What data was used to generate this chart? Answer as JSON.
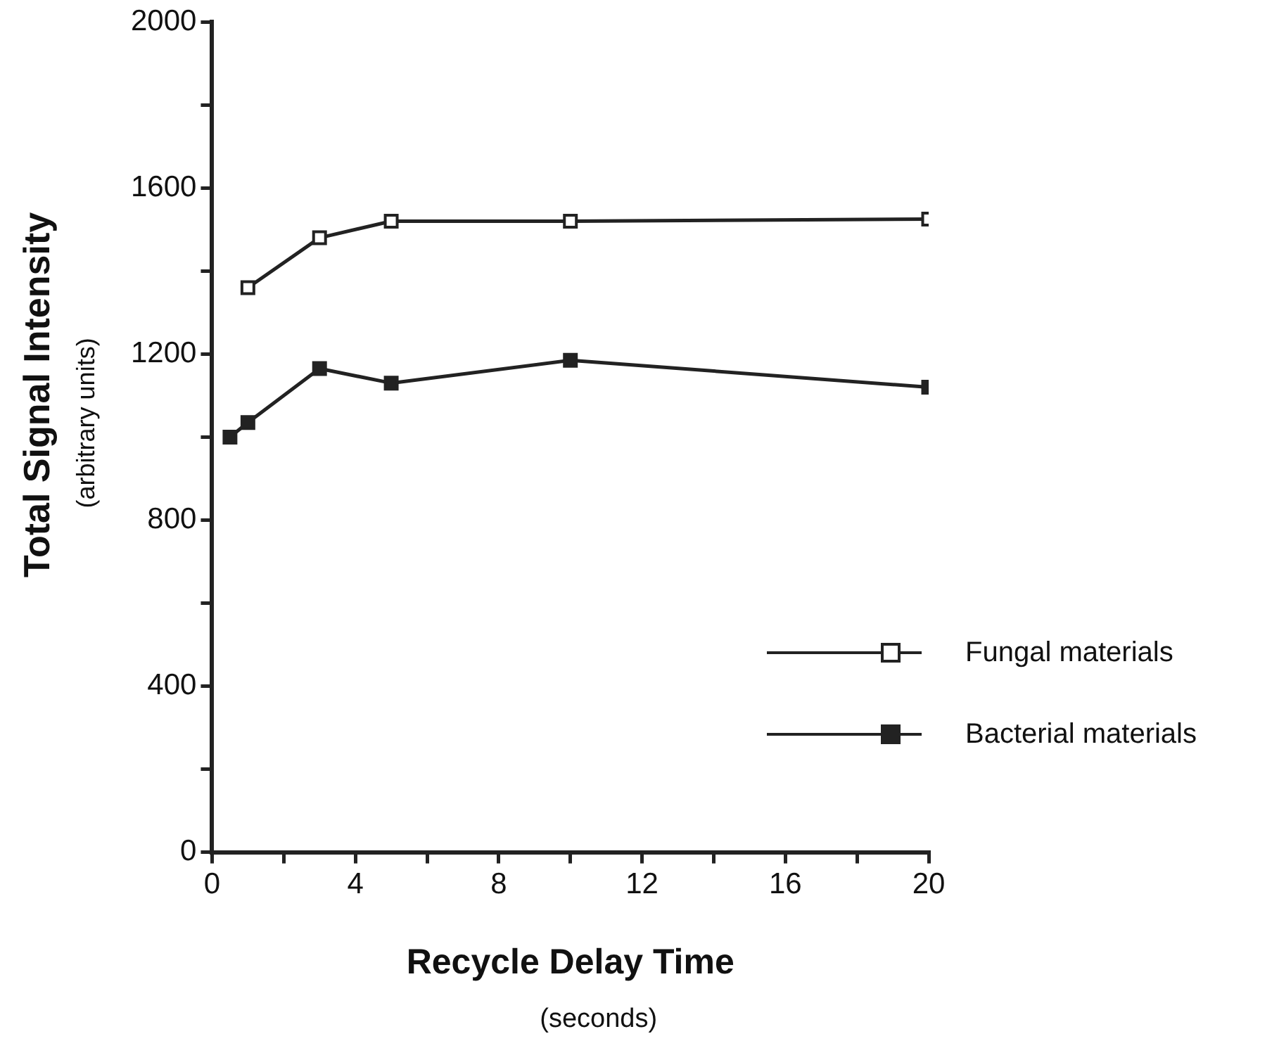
{
  "chart_data": {
    "type": "line",
    "xlabel": "Recycle Delay Time\n(seconds)",
    "ylabel": "Total Signal Intensity\n(arbitrary units)",
    "xlim": [
      0,
      20
    ],
    "xticks": [
      0,
      {
        "value": 2,
        "label": null
      },
      4,
      {
        "value": 6,
        "label": null
      },
      8,
      {
        "value": 10,
        "label": null
      },
      12,
      {
        "value": 14,
        "label": null
      },
      16,
      {
        "value": 18,
        "label": null
      },
      20
    ],
    "ylim": [
      0,
      2000
    ],
    "yticks": [
      0,
      {
        "value": 200,
        "label": null
      },
      400,
      {
        "value": 600,
        "label": null
      },
      800,
      {
        "value": 1000,
        "label": null
      },
      1200,
      {
        "value": 1400,
        "label": null
      },
      1600,
      {
        "value": 1800,
        "label": null
      },
      2000
    ],
    "series": [
      {
        "name": "Fungal materials",
        "color": "#222222",
        "x": [
          1,
          3,
          5,
          10,
          20
        ],
        "values": [
          1360,
          1480,
          1520,
          1520,
          1525
        ]
      },
      {
        "name": "Bacterial materials",
        "color": "#222222",
        "x": [
          0.5,
          1,
          3,
          5,
          10,
          20
        ],
        "values": [
          1000,
          1035,
          1165,
          1130,
          1185,
          1120
        ]
      }
    ],
    "marker": "square",
    "line_style": "solid",
    "grid": false,
    "legend": "right"
  }
}
